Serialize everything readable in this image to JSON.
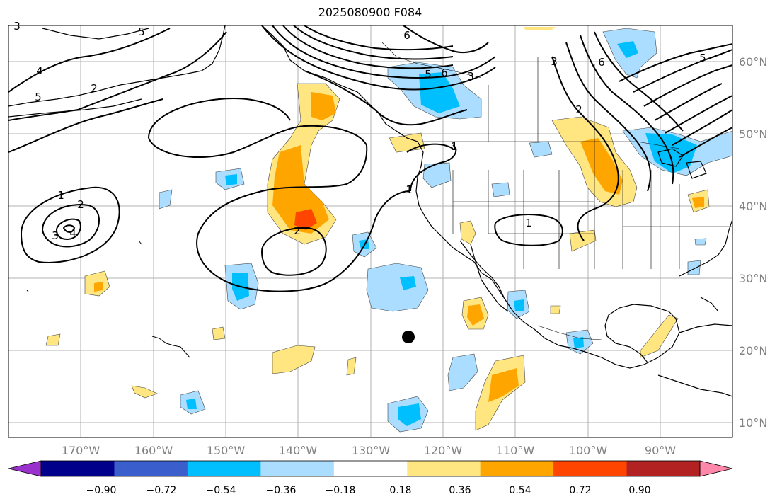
{
  "title": "2025080900 F084",
  "map": {
    "projection": "PlateCarree",
    "lon_range": [
      -180,
      -80
    ],
    "lat_range": [
      8,
      65
    ],
    "lon_ticks": [
      "170°W",
      "160°W",
      "150°W",
      "140°W",
      "130°W",
      "120°W",
      "110°W",
      "100°W",
      "90°W"
    ],
    "lat_ticks": [
      "60°N",
      "50°N",
      "40°N",
      "30°N",
      "20°N",
      "10°N"
    ],
    "grid": true,
    "contour_labels": [
      "1",
      "2",
      "3",
      "4",
      "5",
      "6",
      "1",
      "2",
      "3",
      "4",
      "5",
      "6",
      "1",
      "2",
      "3",
      "5",
      "6",
      "5",
      "1",
      "2",
      "3"
    ],
    "marker": {
      "type": "dot",
      "lon": -125,
      "lat": 22,
      "color": "#000000"
    }
  },
  "colorbar": {
    "labels": [
      "−0.90",
      "−0.72",
      "−0.54",
      "−0.36",
      "−0.18",
      "0.18",
      "0.36",
      "0.54",
      "0.72",
      "0.90"
    ],
    "colors": [
      "#9932cc",
      "#00008b",
      "#3a5fcd",
      "#00bfff",
      "#aaddff",
      "#ffffff",
      "#ffe680",
      "#ffa500",
      "#ff4500",
      "#b22222",
      "#ff88aa"
    ]
  },
  "colors": {
    "coastline": "#000000",
    "grid": "#b0b0b0",
    "axis_label": "#808080"
  }
}
